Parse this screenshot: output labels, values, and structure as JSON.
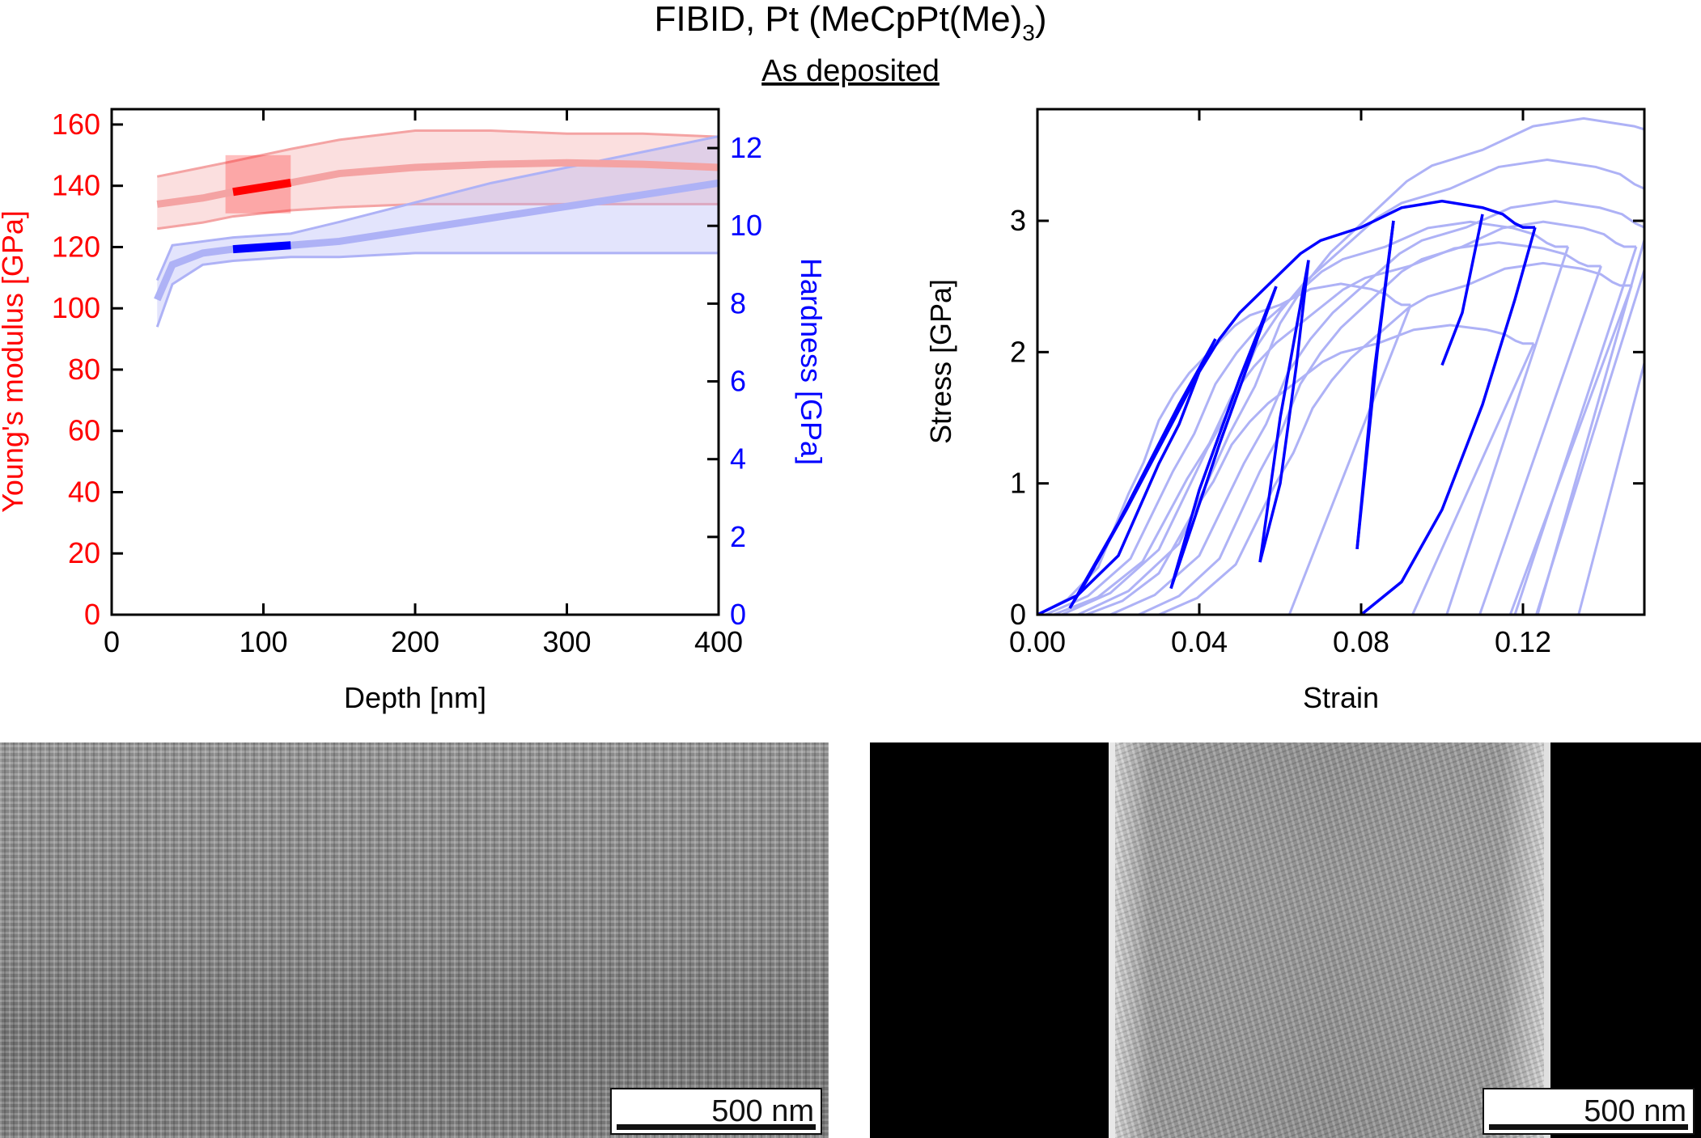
{
  "figure": {
    "title_main": "FIBID, Pt (MeCpPt(Me)",
    "title_sub": "3",
    "title_end": ")",
    "subtitle": "As deposited"
  },
  "colors": {
    "modulus": "#ff0000",
    "modulus_light": "#f4a3a3",
    "hardness": "#0000ff",
    "hardness_light": "#aeb2f6",
    "axis": "#000000"
  },
  "chart_data": [
    {
      "type": "line",
      "title": "",
      "xlabel": "Depth [nm]",
      "ylabel_left": "Young's modulus [GPa]",
      "ylabel_right": "Hardness [GPa]",
      "xlim": [
        0,
        400
      ],
      "ylim_left": [
        0,
        165
      ],
      "ylim_right": [
        0,
        13
      ],
      "xticks": [
        0,
        100,
        200,
        300,
        400
      ],
      "yticks_left": [
        0,
        20,
        40,
        60,
        80,
        100,
        120,
        140,
        160
      ],
      "yticks_right": [
        0,
        2,
        4,
        6,
        8,
        10,
        12
      ],
      "highlight_range": [
        75,
        118
      ],
      "series": [
        {
          "name": "Young's modulus (mean)",
          "axis": "left",
          "x": [
            30,
            60,
            80,
            118,
            150,
            200,
            250,
            300,
            350,
            400
          ],
          "y": [
            134,
            136,
            138,
            141,
            144,
            146,
            147,
            147.5,
            147,
            146
          ],
          "band_upper": [
            143,
            146,
            148,
            152,
            155,
            158,
            158,
            157,
            157,
            156
          ],
          "band_lower": [
            126,
            128,
            130,
            132,
            133,
            134,
            134,
            134,
            134,
            134
          ]
        },
        {
          "name": "Hardness (mean)",
          "axis": "right",
          "x": [
            30,
            40,
            60,
            80,
            118,
            150,
            200,
            250,
            300,
            350,
            400
          ],
          "y": [
            8.1,
            9.0,
            9.3,
            9.4,
            9.5,
            9.6,
            9.9,
            10.2,
            10.5,
            10.8,
            11.1
          ],
          "band_upper": [
            8.6,
            9.5,
            9.6,
            9.7,
            9.8,
            10.1,
            10.6,
            11.1,
            11.5,
            11.9,
            12.3
          ],
          "band_lower": [
            7.4,
            8.5,
            9.0,
            9.1,
            9.2,
            9.2,
            9.3,
            9.3,
            9.3,
            9.3,
            9.3
          ]
        }
      ]
    },
    {
      "type": "line",
      "title": "",
      "xlabel": "Strain",
      "ylabel": "Stress [GPa]",
      "xlim": [
        0,
        0.15
      ],
      "ylim": [
        0,
        3.85
      ],
      "xticks": [
        0.0,
        0.04,
        0.08,
        0.12
      ],
      "xtick_labels": [
        "0.00",
        "0.04",
        "0.08",
        "0.12"
      ],
      "yticks": [
        0,
        1,
        2,
        3
      ],
      "series": [
        {
          "name": "highlighted cycle",
          "x": [
            0.0,
            0.01,
            0.02,
            0.03,
            0.035,
            0.04,
            0.045,
            0.05,
            0.055,
            0.06,
            0.065,
            0.07,
            0.08,
            0.09,
            0.1,
            0.11,
            0.115,
            0.118,
            0.12,
            0.123
          ],
          "y": [
            0.0,
            0.15,
            0.45,
            1.15,
            1.45,
            1.85,
            2.1,
            2.3,
            2.45,
            2.6,
            2.75,
            2.85,
            2.95,
            3.1,
            3.15,
            3.1,
            3.05,
            2.98,
            2.95,
            2.95
          ]
        },
        {
          "name": "unload 1",
          "x": [
            0.044,
            0.034,
            0.022,
            0.012,
            0.008
          ],
          "y": [
            2.1,
            1.5,
            0.8,
            0.25,
            0.05
          ]
        },
        {
          "name": "reload 1",
          "x": [
            0.008,
            0.02,
            0.035,
            0.044
          ],
          "y": [
            0.05,
            0.7,
            1.6,
            2.1
          ]
        },
        {
          "name": "unload 2",
          "x": [
            0.059,
            0.05,
            0.04,
            0.033
          ],
          "y": [
            2.5,
            1.8,
            0.95,
            0.2
          ]
        },
        {
          "name": "reload 2",
          "x": [
            0.033,
            0.045,
            0.059
          ],
          "y": [
            0.2,
            1.3,
            2.5
          ]
        },
        {
          "name": "unload 3",
          "x": [
            0.067,
            0.064,
            0.06,
            0.055
          ],
          "y": [
            2.7,
            1.9,
            1.0,
            0.4
          ]
        },
        {
          "name": "reload 3",
          "x": [
            0.055,
            0.06,
            0.067
          ],
          "y": [
            0.4,
            1.5,
            2.7
          ]
        },
        {
          "name": "unload 4",
          "x": [
            0.088,
            0.084,
            0.081,
            0.079
          ],
          "y": [
            3.0,
            2.0,
            1.1,
            0.5
          ]
        },
        {
          "name": "reload 4",
          "x": [
            0.079,
            0.083,
            0.088
          ],
          "y": [
            0.5,
            1.8,
            3.0
          ]
        },
        {
          "name": "unload 5",
          "x": [
            0.11,
            0.105,
            0.1
          ],
          "y": [
            3.05,
            2.3,
            1.9
          ]
        },
        {
          "name": "final unload",
          "x": [
            0.123,
            0.118,
            0.11,
            0.1,
            0.09,
            0.08
          ],
          "y": [
            2.95,
            2.4,
            1.6,
            0.8,
            0.25,
            0.0
          ]
        }
      ],
      "background_series_count": 9
    }
  ],
  "micrographs": [
    {
      "scale_label": "500 nm"
    },
    {
      "scale_label": "500 nm"
    }
  ]
}
